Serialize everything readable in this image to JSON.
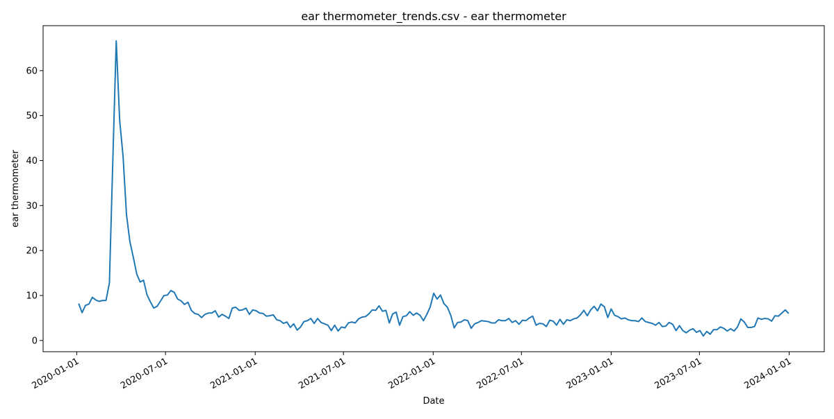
{
  "chart_data": {
    "type": "line",
    "title": "ear thermometer_trends.csv - ear thermometer",
    "x_label": "Date",
    "y_label": "ear thermometer",
    "color": "#1f77b4",
    "x": [
      "2020-01-05",
      "2020-01-12",
      "2020-01-19",
      "2020-01-26",
      "2020-02-02",
      "2020-02-09",
      "2020-02-16",
      "2020-02-23",
      "2020-03-01",
      "2020-03-08",
      "2020-03-15",
      "2020-03-22",
      "2020-03-29",
      "2020-04-05",
      "2020-04-12",
      "2020-04-19",
      "2020-04-26",
      "2020-05-03",
      "2020-05-10",
      "2020-05-17",
      "2020-05-24",
      "2020-05-31",
      "2020-06-07",
      "2020-06-14",
      "2020-06-21",
      "2020-06-28",
      "2020-07-05",
      "2020-07-12",
      "2020-07-19",
      "2020-07-26",
      "2020-08-02",
      "2020-08-09",
      "2020-08-16",
      "2020-08-23",
      "2020-08-30",
      "2020-09-06",
      "2020-09-13",
      "2020-09-20",
      "2020-09-27",
      "2020-10-04",
      "2020-10-11",
      "2020-10-18",
      "2020-10-25",
      "2020-11-01",
      "2020-11-08",
      "2020-11-15",
      "2020-11-22",
      "2020-11-29",
      "2020-12-06",
      "2020-12-13",
      "2020-12-20",
      "2020-12-27",
      "2021-01-03",
      "2021-01-10",
      "2021-01-17",
      "2021-01-24",
      "2021-01-31",
      "2021-02-07",
      "2021-02-14",
      "2021-02-21",
      "2021-02-28",
      "2021-03-07",
      "2021-03-14",
      "2021-03-21",
      "2021-03-28",
      "2021-04-04",
      "2021-04-11",
      "2021-04-18",
      "2021-04-25",
      "2021-05-02",
      "2021-05-09",
      "2021-05-16",
      "2021-05-23",
      "2021-05-30",
      "2021-06-06",
      "2021-06-13",
      "2021-06-20",
      "2021-06-27",
      "2021-07-04",
      "2021-07-11",
      "2021-07-18",
      "2021-07-25",
      "2021-08-01",
      "2021-08-08",
      "2021-08-15",
      "2021-08-22",
      "2021-08-29",
      "2021-09-05",
      "2021-09-12",
      "2021-09-19",
      "2021-09-26",
      "2021-10-03",
      "2021-10-10",
      "2021-10-17",
      "2021-10-24",
      "2021-10-31",
      "2021-11-07",
      "2021-11-14",
      "2021-11-21",
      "2021-11-28",
      "2021-12-05",
      "2021-12-12",
      "2021-12-19",
      "2021-12-26",
      "2022-01-02",
      "2022-01-09",
      "2022-01-16",
      "2022-01-23",
      "2022-01-30",
      "2022-02-06",
      "2022-02-13",
      "2022-02-20",
      "2022-02-27",
      "2022-03-06",
      "2022-03-13",
      "2022-03-20",
      "2022-03-27",
      "2022-04-03",
      "2022-04-10",
      "2022-04-17",
      "2022-04-24",
      "2022-05-01",
      "2022-05-08",
      "2022-05-15",
      "2022-05-22",
      "2022-05-29",
      "2022-06-05",
      "2022-06-12",
      "2022-06-19",
      "2022-06-26",
      "2022-07-03",
      "2022-07-10",
      "2022-07-17",
      "2022-07-24",
      "2022-07-31",
      "2022-08-07",
      "2022-08-14",
      "2022-08-21",
      "2022-08-28",
      "2022-09-04",
      "2022-09-11",
      "2022-09-18",
      "2022-09-25",
      "2022-10-02",
      "2022-10-09",
      "2022-10-16",
      "2022-10-23",
      "2022-10-30",
      "2022-11-06",
      "2022-11-13",
      "2022-11-20",
      "2022-11-27",
      "2022-12-04",
      "2022-12-11",
      "2022-12-18",
      "2022-12-25",
      "2023-01-01",
      "2023-01-08",
      "2023-01-15",
      "2023-01-22",
      "2023-01-29",
      "2023-02-05",
      "2023-02-12",
      "2023-02-19",
      "2023-02-26",
      "2023-03-05",
      "2023-03-12",
      "2023-03-19",
      "2023-03-26",
      "2023-04-02",
      "2023-04-09",
      "2023-04-16",
      "2023-04-23",
      "2023-04-30",
      "2023-05-07",
      "2023-05-14",
      "2023-05-21",
      "2023-05-28",
      "2023-06-04",
      "2023-06-11",
      "2023-06-18",
      "2023-06-25",
      "2023-07-02",
      "2023-07-09",
      "2023-07-16",
      "2023-07-23",
      "2023-07-30",
      "2023-08-06",
      "2023-08-13",
      "2023-08-20",
      "2023-08-27",
      "2023-09-03",
      "2023-09-10",
      "2023-09-17",
      "2023-09-24",
      "2023-10-01",
      "2023-10-08",
      "2023-10-15",
      "2023-10-22",
      "2023-10-29",
      "2023-11-05",
      "2023-11-12",
      "2023-11-19",
      "2023-11-26",
      "2023-12-03",
      "2023-12-10",
      "2023-12-17",
      "2023-12-24",
      "2023-12-31"
    ],
    "values": [
      8.2,
      6.2,
      7.8,
      8.1,
      9.6,
      9.0,
      8.7,
      8.9,
      8.9,
      12.8,
      40,
      66.6,
      49,
      41,
      28,
      22,
      18.5,
      14.8,
      13,
      13.4,
      10.2,
      8.6,
      7.2,
      7.6,
      8.8,
      10,
      10.1,
      11.1,
      10.7,
      9.2,
      8.8,
      8.0,
      8.5,
      6.7,
      6.0,
      5.8,
      5.1,
      5.8,
      6.1,
      6.1,
      6.6,
      5.2,
      5.8,
      5.4,
      4.9,
      7.2,
      7.4,
      6.7,
      6.8,
      7.2,
      5.8,
      6.8,
      6.6,
      6.1,
      6.0,
      5.4,
      5.5,
      5.7,
      4.6,
      4.4,
      3.8,
      4.1,
      2.9,
      3.7,
      2.3,
      3.0,
      4.2,
      4.4,
      4.9,
      3.8,
      4.9,
      4.0,
      3.7,
      3.4,
      2.2,
      3.4,
      2.1,
      3.0,
      2.8,
      3.9,
      4.1,
      3.9,
      4.8,
      5.2,
      5.3,
      5.9,
      6.8,
      6.7,
      7.7,
      6.5,
      6.7,
      3.9,
      5.9,
      6.3,
      3.4,
      5.3,
      5.5,
      6.4,
      5.6,
      6.1,
      5.6,
      4.4,
      5.8,
      7.5,
      10.5,
      9.2,
      10.1,
      8.2,
      7.4,
      5.6,
      2.8,
      4.0,
      4.1,
      4.6,
      4.4,
      2.7,
      3.7,
      4.0,
      4.4,
      4.3,
      4.2,
      3.9,
      3.9,
      4.6,
      4.4,
      4.4,
      4.9,
      4.0,
      4.4,
      3.6,
      4.5,
      4.4,
      5.0,
      5.4,
      3.4,
      3.8,
      3.7,
      3.1,
      4.5,
      4.3,
      3.4,
      4.7,
      3.6,
      4.6,
      4.4,
      4.8,
      5.0,
      5.7,
      6.7,
      5.5,
      6.8,
      7.6,
      6.6,
      8.1,
      7.5,
      5.1,
      7.0,
      5.6,
      5.3,
      4.8,
      5.0,
      4.6,
      4.4,
      4.4,
      4.2,
      5.0,
      4.2,
      4.0,
      3.8,
      3.4,
      4.0,
      3.1,
      3.2,
      4.0,
      3.6,
      2.2,
      3.3,
      2.2,
      1.7,
      2.3,
      2.6,
      1.8,
      2.2,
      1.0,
      2.0,
      1.4,
      2.4,
      2.4,
      3.0,
      2.7,
      2.1,
      2.6,
      2.1,
      3.0,
      4.8,
      4.1,
      2.9,
      2.9,
      3.1,
      5.0,
      4.7,
      4.9,
      4.8,
      4.3,
      5.5,
      5.4,
      6.1,
      6.8,
      6.0
    ],
    "xlim": [
      "2019-10-24",
      "2024-03-13"
    ],
    "xticks": [
      "2020-01-01",
      "2020-07-01",
      "2021-01-01",
      "2021-07-01",
      "2022-01-01",
      "2022-07-01",
      "2023-01-01",
      "2023-07-01",
      "2024-01-01"
    ],
    "ylim": [
      -2.5,
      70
    ],
    "yticks": [
      0,
      10,
      20,
      30,
      40,
      50,
      60
    ]
  }
}
